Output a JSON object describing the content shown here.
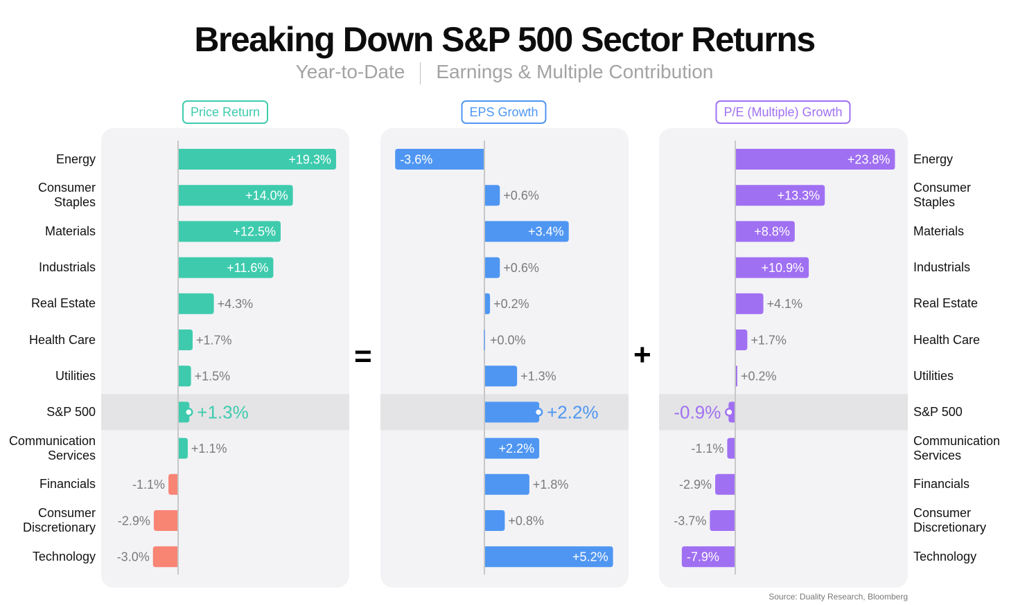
{
  "title": "Breaking Down S&P 500 Sector Returns",
  "subtitle_left": "Year-to-Date",
  "subtitle_right": "Earnings & Multiple Contribution",
  "operators": {
    "equals": "=",
    "plus": "+"
  },
  "source": "Source: Duality Research, Bloomberg",
  "colors": {
    "price": "#3ecbad",
    "eps": "#4f96f2",
    "pe": "#a070f2",
    "negative_price": "#f88474",
    "panel_bg": "#f3f3f6",
    "highlight_row": "#e4e4e6",
    "axis": "#c7c7c7",
    "outside_label": "#7a7a7a"
  },
  "chart_data": {
    "type": "bar",
    "orientation": "horizontal",
    "title": "Breaking Down S&P 500 Sector Returns",
    "unit": "%",
    "highlight_category": "S&P 500",
    "categories": [
      "Energy",
      "Consumer Staples",
      "Materials",
      "Industrials",
      "Real Estate",
      "Health Care",
      "Utilities",
      "S&P 500",
      "Communication Services",
      "Financials",
      "Consumer Discretionary",
      "Technology"
    ],
    "category_lines": [
      [
        "Energy"
      ],
      [
        "Consumer",
        "Staples"
      ],
      [
        "Materials"
      ],
      [
        "Industrials"
      ],
      [
        "Real Estate"
      ],
      [
        "Health Care"
      ],
      [
        "Utilities"
      ],
      [
        "S&P 500"
      ],
      [
        "Communication",
        "Services"
      ],
      [
        "Financials"
      ],
      [
        "Consumer",
        "Discretionary"
      ],
      [
        "Technology"
      ]
    ],
    "series": [
      {
        "name": "Price Return",
        "values": [
          19.3,
          14.0,
          12.5,
          11.6,
          4.3,
          1.7,
          1.5,
          1.3,
          1.1,
          -1.1,
          -2.9,
          -3.0
        ],
        "labels": [
          "+19.3%",
          "+14.0%",
          "+12.5%",
          "+11.6%",
          "+4.3%",
          "+1.7%",
          "+1.5%",
          "+1.3%",
          "+1.1%",
          "-1.1%",
          "-2.9%",
          "-3.0%"
        ]
      },
      {
        "name": "EPS Growth",
        "values": [
          -3.6,
          0.6,
          3.4,
          0.6,
          0.2,
          0.0,
          1.3,
          2.2,
          2.2,
          1.8,
          0.8,
          5.2
        ],
        "labels": [
          "-3.6%",
          "+0.6%",
          "+3.4%",
          "+0.6%",
          "+0.2%",
          "+0.0%",
          "+1.3%",
          "+2.2%",
          "+2.2%",
          "+1.8%",
          "+0.8%",
          "+5.2%"
        ]
      },
      {
        "name": "P/E (Multiple) Growth",
        "values": [
          23.8,
          13.3,
          8.8,
          10.9,
          4.1,
          1.7,
          0.2,
          -0.9,
          -1.1,
          -2.9,
          -3.7,
          -7.9
        ],
        "labels": [
          "+23.8%",
          "+13.3%",
          "+8.8%",
          "+10.9%",
          "+4.1%",
          "+1.7%",
          "+0.2%",
          "-0.9%",
          "-1.1%",
          "-2.9%",
          "-3.7%",
          "-7.9%"
        ]
      }
    ]
  }
}
